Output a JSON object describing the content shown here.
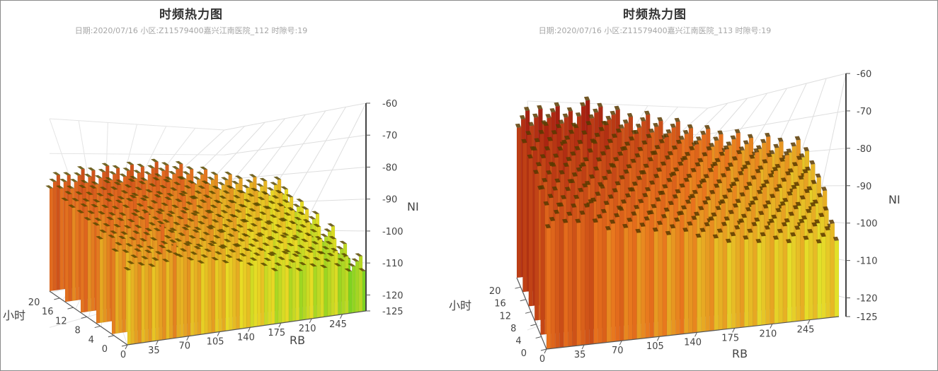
{
  "chart_data": [
    {
      "type": "3d-bar",
      "title": "时频热力图",
      "subtitle": "日期:2020/07/16  小区:Z11579400嘉兴江南医院_112  时隙号:19",
      "zlabel": "NI",
      "xlabel": "RB",
      "ylabel": "小时",
      "x_ticks": [
        "0",
        "35",
        "70",
        "105",
        "140",
        "175",
        "210",
        "245"
      ],
      "y_ticks": [
        "0",
        "4",
        "8",
        "12",
        "16",
        "20"
      ],
      "z_ticks": [
        "-60",
        "-70",
        "-80",
        "-90",
        "-100",
        "-110",
        "-120",
        "-125"
      ],
      "z_range": [
        -125,
        -60
      ],
      "rb_range": [
        0,
        272
      ],
      "hour_range": [
        0,
        23
      ],
      "front_hour_profile": {
        "rb": [
          0,
          20,
          45,
          55,
          60,
          80,
          110,
          140,
          170,
          200,
          230,
          260,
          272
        ],
        "ni": [
          -99,
          -99,
          -99,
          -96,
          -99,
          -100,
          -101,
          -103,
          -106,
          -107,
          -107,
          -110,
          -111
        ]
      },
      "back_hour_profile": {
        "rb": [
          0,
          30,
          60,
          100,
          120,
          140,
          170,
          200,
          230,
          260,
          272
        ],
        "ni": [
          -92,
          -91,
          -91,
          -92,
          -92,
          -93,
          -96,
          -99,
          -101,
          -103,
          -104
        ]
      },
      "colors": {
        "high": "#9e1d10",
        "mid": "#e26a1f",
        "low": "#e8dc25",
        "lowest": "#7ed321",
        "top_cap": "#5a4a00"
      }
    },
    {
      "type": "3d-bar",
      "title": "时频热力图",
      "subtitle": "日期:2020/07/16  小区:Z11579400嘉兴江南医院_113  时隙号:19",
      "zlabel": "NI",
      "xlabel": "RB",
      "ylabel": "小时",
      "x_ticks": [
        "0",
        "35",
        "70",
        "105",
        "140",
        "175",
        "210",
        "245"
      ],
      "y_ticks": [
        "0",
        "4",
        "8",
        "12",
        "16",
        "20"
      ],
      "z_ticks": [
        "-60",
        "-70",
        "-80",
        "-90",
        "-100",
        "-110",
        "-120",
        "-125"
      ],
      "z_range": [
        -125,
        -60
      ],
      "rb_range": [
        0,
        272
      ],
      "hour_range": [
        0,
        23
      ],
      "front_hour_profile": {
        "rb": [
          0,
          20,
          35,
          50,
          70,
          100,
          130,
          160,
          190,
          220,
          250,
          272
        ],
        "ni": [
          -90,
          -90,
          -89,
          -92,
          -93,
          -95,
          -96,
          -99,
          -100,
          -101,
          -102,
          -103
        ]
      },
      "back_hour_profile": {
        "rb": [
          0,
          25,
          35,
          50,
          60,
          80,
          100,
          120,
          150,
          180,
          210,
          240,
          272
        ],
        "ni": [
          -84,
          -82,
          -83,
          -84,
          -82,
          -84,
          -87,
          -88,
          -91,
          -94,
          -96,
          -98,
          -100
        ]
      },
      "colors": {
        "high": "#a31d10",
        "mid": "#e8721d",
        "low": "#e6e12a",
        "lowest": "#b5e02a",
        "top_cap": "#5a3a00"
      }
    }
  ]
}
